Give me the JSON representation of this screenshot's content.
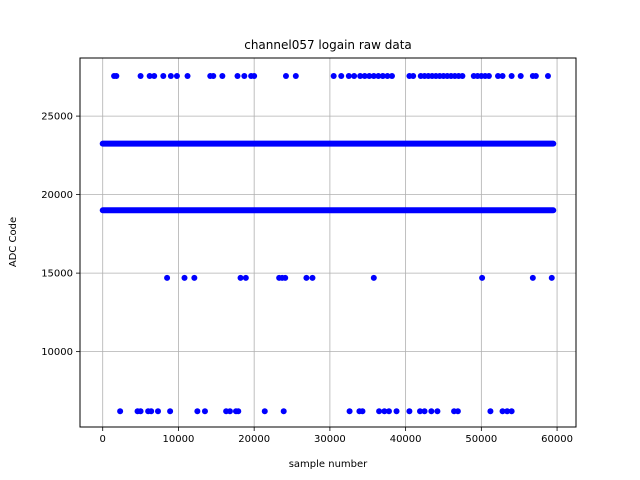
{
  "chart_data": {
    "type": "scatter",
    "title": "channel057 logain raw data",
    "xlabel": "sample number",
    "ylabel": "ADC Code",
    "xlim": [
      -3000,
      62500
    ],
    "ylim": [
      5200,
      28700
    ],
    "xticks": [
      0,
      10000,
      20000,
      30000,
      40000,
      50000,
      60000
    ],
    "yticks": [
      10000,
      15000,
      20000,
      25000
    ],
    "grid": true,
    "marker_color": "#0000ff",
    "dense_bands": [
      {
        "y": 23250,
        "x_start": 0,
        "x_end": 59500
      },
      {
        "y": 19000,
        "x_start": 0,
        "x_end": 59500
      }
    ],
    "points": [
      [
        1500,
        27550
      ],
      [
        1800,
        27550
      ],
      [
        5000,
        27550
      ],
      [
        6200,
        27550
      ],
      [
        6800,
        27550
      ],
      [
        8000,
        27550
      ],
      [
        9000,
        27550
      ],
      [
        9800,
        27550
      ],
      [
        11200,
        27550
      ],
      [
        14200,
        27550
      ],
      [
        14600,
        27550
      ],
      [
        15800,
        27550
      ],
      [
        17800,
        27550
      ],
      [
        18700,
        27550
      ],
      [
        19600,
        27550
      ],
      [
        20000,
        27550
      ],
      [
        24200,
        27550
      ],
      [
        25500,
        27550
      ],
      [
        30500,
        27550
      ],
      [
        31500,
        27550
      ],
      [
        32500,
        27550
      ],
      [
        33200,
        27550
      ],
      [
        34000,
        27550
      ],
      [
        34600,
        27550
      ],
      [
        35200,
        27550
      ],
      [
        35800,
        27550
      ],
      [
        36400,
        27550
      ],
      [
        37000,
        27550
      ],
      [
        37600,
        27550
      ],
      [
        38200,
        27550
      ],
      [
        40500,
        27550
      ],
      [
        41000,
        27550
      ],
      [
        42000,
        27550
      ],
      [
        42500,
        27550
      ],
      [
        43000,
        27550
      ],
      [
        43500,
        27550
      ],
      [
        44000,
        27550
      ],
      [
        44500,
        27550
      ],
      [
        45000,
        27550
      ],
      [
        45500,
        27550
      ],
      [
        46000,
        27550
      ],
      [
        46500,
        27550
      ],
      [
        47000,
        27550
      ],
      [
        47500,
        27550
      ],
      [
        49000,
        27550
      ],
      [
        49500,
        27550
      ],
      [
        50000,
        27550
      ],
      [
        50500,
        27550
      ],
      [
        51000,
        27550
      ],
      [
        52200,
        27550
      ],
      [
        52800,
        27550
      ],
      [
        54000,
        27550
      ],
      [
        55200,
        27550
      ],
      [
        56800,
        27550
      ],
      [
        57200,
        27550
      ],
      [
        58800,
        27550
      ],
      [
        8500,
        14700
      ],
      [
        10800,
        14700
      ],
      [
        12100,
        14700
      ],
      [
        18200,
        14700
      ],
      [
        18900,
        14700
      ],
      [
        23300,
        14700
      ],
      [
        23700,
        14700
      ],
      [
        24100,
        14700
      ],
      [
        26900,
        14700
      ],
      [
        27700,
        14700
      ],
      [
        35800,
        14700
      ],
      [
        50100,
        14700
      ],
      [
        56800,
        14700
      ],
      [
        59300,
        14700
      ],
      [
        2300,
        6200
      ],
      [
        4600,
        6200
      ],
      [
        5000,
        6200
      ],
      [
        6000,
        6200
      ],
      [
        6400,
        6200
      ],
      [
        7300,
        6200
      ],
      [
        8900,
        6200
      ],
      [
        12500,
        6200
      ],
      [
        13500,
        6200
      ],
      [
        16300,
        6200
      ],
      [
        16800,
        6200
      ],
      [
        17600,
        6200
      ],
      [
        17900,
        6200
      ],
      [
        21400,
        6200
      ],
      [
        23900,
        6200
      ],
      [
        32600,
        6200
      ],
      [
        33900,
        6200
      ],
      [
        34300,
        6200
      ],
      [
        36500,
        6200
      ],
      [
        37200,
        6200
      ],
      [
        37800,
        6200
      ],
      [
        38800,
        6200
      ],
      [
        40500,
        6200
      ],
      [
        41900,
        6200
      ],
      [
        42500,
        6200
      ],
      [
        43400,
        6200
      ],
      [
        44200,
        6200
      ],
      [
        46400,
        6200
      ],
      [
        46900,
        6200
      ],
      [
        51200,
        6200
      ],
      [
        52800,
        6200
      ],
      [
        53400,
        6200
      ],
      [
        54000,
        6200
      ]
    ]
  }
}
